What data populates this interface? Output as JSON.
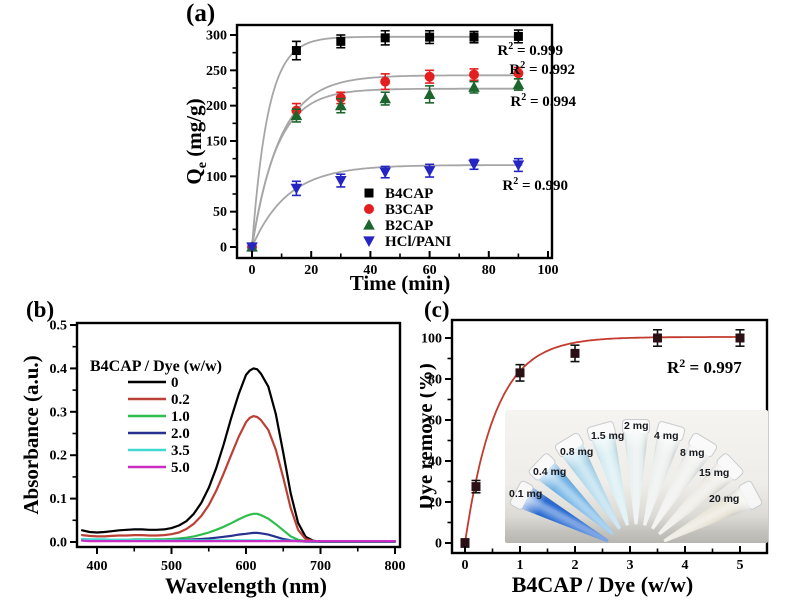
{
  "panels": {
    "a": {
      "label": "(a)"
    },
    "b": {
      "label": "(b)"
    },
    "c": {
      "label": "(c)"
    }
  },
  "chart_data": [
    {
      "id": "a",
      "type": "scatter",
      "xlabel": "Time (min)",
      "ylabel": [
        {
          "t": "Q"
        },
        {
          "t": "e",
          "sub": true
        },
        {
          "t": " (mg/g)"
        }
      ],
      "xticks": [
        "0",
        "20",
        "40",
        "60",
        "80",
        "100"
      ],
      "yticks": [
        "0",
        "50",
        "100",
        "150",
        "200",
        "250",
        "300"
      ],
      "xlim": [
        -5,
        101
      ],
      "ylim": [
        -16,
        314
      ],
      "grid": false,
      "legend_position": "lower-center-right",
      "series": [
        {
          "name": "B4CAP",
          "marker": "square",
          "color": "#000000",
          "fit_color": "#a6a6a6",
          "x": [
            0,
            15,
            30,
            45,
            60,
            75,
            90
          ],
          "y": [
            0,
            278,
            291,
            296,
            297,
            297,
            298
          ],
          "err": [
            0,
            13,
            9,
            10,
            9,
            8,
            9
          ],
          "fit": {
            "a": 297.5,
            "k": 0.185
          },
          "r2": {
            "prefix": "R",
            "sup": "2",
            "rest": " = 0.999",
            "color": "#000000"
          }
        },
        {
          "name": "B3CAP",
          "marker": "circle",
          "color": "#e31e1e",
          "fit_color": "#a6a6a6",
          "x": [
            0,
            15,
            30,
            45,
            60,
            75,
            90
          ],
          "y": [
            0,
            193,
            211,
            234,
            241,
            244,
            246
          ],
          "err": [
            0,
            10,
            8,
            11,
            9,
            8,
            8
          ],
          "fit": {
            "a": 243,
            "k": 0.105
          },
          "r2": {
            "prefix": "R",
            "sup": "2",
            "rest": " = 0.992",
            "color": "#e31e1e"
          }
        },
        {
          "name": "B2CAP",
          "marker": "triangle-up",
          "color": "#1c662e",
          "fit_color": "#a6a6a6",
          "x": [
            0,
            15,
            30,
            45,
            60,
            75,
            90
          ],
          "y": [
            0,
            186,
            200,
            210,
            216,
            226,
            230
          ],
          "err": [
            0,
            9,
            10,
            9,
            12,
            8,
            8
          ],
          "fit": {
            "a": 224,
            "k": 0.118
          },
          "r2": {
            "prefix": "R",
            "sup": "2",
            "rest": " = 0.994",
            "color": "#1c662e"
          }
        },
        {
          "name": "HCl/PANI",
          "marker": "triangle-down",
          "color": "#2525c4",
          "fit_color": "#a6a6a6",
          "x": [
            0,
            15,
            30,
            45,
            60,
            75,
            90
          ],
          "y": [
            0,
            83,
            94,
            106,
            108,
            117,
            116
          ],
          "err": [
            0,
            10,
            9,
            8,
            9,
            7,
            9
          ],
          "fit": {
            "a": 116,
            "k": 0.083
          },
          "r2": {
            "prefix": "R",
            "sup": "2",
            "rest": " = 0.990",
            "color": "#2525c4"
          }
        }
      ]
    },
    {
      "id": "b",
      "type": "line",
      "xlabel": "Wavelength (nm)",
      "ylabel": [
        {
          "t": "Absorbance (a.u.)"
        }
      ],
      "legend_title": "B4CAP / Dye (w/w)",
      "xticks": [
        "400",
        "500",
        "600",
        "700",
        "800"
      ],
      "yticks": [
        "0.0",
        "0.1",
        "0.2",
        "0.3",
        "0.4",
        "0.5"
      ],
      "xlim": [
        373,
        807
      ],
      "ylim": [
        -0.012,
        0.505
      ],
      "grid": false,
      "x": [
        380,
        390,
        400,
        410,
        420,
        430,
        440,
        450,
        460,
        470,
        480,
        490,
        500,
        510,
        520,
        530,
        540,
        550,
        560,
        570,
        580,
        590,
        600,
        605,
        610,
        615,
        620,
        630,
        640,
        650,
        660,
        670,
        680,
        690,
        700,
        720,
        740,
        760,
        780,
        800
      ],
      "series": [
        {
          "name": "0",
          "color": "#000000",
          "y": [
            0.027,
            0.023,
            0.022,
            0.023,
            0.025,
            0.027,
            0.028,
            0.029,
            0.029,
            0.028,
            0.028,
            0.029,
            0.032,
            0.038,
            0.048,
            0.065,
            0.09,
            0.125,
            0.17,
            0.225,
            0.285,
            0.34,
            0.385,
            0.395,
            0.4,
            0.398,
            0.388,
            0.358,
            0.295,
            0.205,
            0.112,
            0.044,
            0.012,
            0.003,
            0.001,
            0.001,
            0.001,
            0.001,
            0.001,
            0.001
          ]
        },
        {
          "name": "0.2",
          "color": "#bb4036",
          "y": [
            0.016,
            0.014,
            0.013,
            0.013,
            0.014,
            0.015,
            0.015,
            0.016,
            0.016,
            0.015,
            0.015,
            0.016,
            0.018,
            0.022,
            0.03,
            0.042,
            0.06,
            0.085,
            0.118,
            0.158,
            0.2,
            0.242,
            0.276,
            0.286,
            0.29,
            0.288,
            0.281,
            0.258,
            0.213,
            0.148,
            0.078,
            0.028,
            0.007,
            0.002,
            0.001,
            0.001,
            0.001,
            0.001,
            0.001,
            0.001
          ]
        },
        {
          "name": "1.0",
          "color": "#2fbe4e",
          "y": [
            0.006,
            0.005,
            0.005,
            0.005,
            0.005,
            0.005,
            0.005,
            0.006,
            0.006,
            0.006,
            0.006,
            0.006,
            0.007,
            0.008,
            0.01,
            0.013,
            0.017,
            0.022,
            0.028,
            0.035,
            0.043,
            0.052,
            0.06,
            0.063,
            0.065,
            0.065,
            0.062,
            0.054,
            0.041,
            0.027,
            0.013,
            0.005,
            0.002,
            0.001,
            0.001,
            0.001,
            0.001,
            0.001,
            0.001,
            0.001
          ]
        },
        {
          "name": "2.0",
          "color": "#283090",
          "y": [
            0.004,
            0.004,
            0.003,
            0.003,
            0.003,
            0.003,
            0.003,
            0.004,
            0.004,
            0.004,
            0.004,
            0.004,
            0.004,
            0.005,
            0.005,
            0.006,
            0.007,
            0.008,
            0.01,
            0.012,
            0.014,
            0.017,
            0.019,
            0.02,
            0.021,
            0.021,
            0.02,
            0.017,
            0.012,
            0.007,
            0.004,
            0.002,
            0.001,
            0.001,
            0.001,
            0.001,
            0.001,
            0.001,
            0.001,
            0.001
          ]
        },
        {
          "name": "3.5",
          "color": "#3fd9d2",
          "y": [
            0.007,
            0.006,
            0.006,
            0.006,
            0.005,
            0.005,
            0.005,
            0.005,
            0.005,
            0.005,
            0.004,
            0.004,
            0.004,
            0.004,
            0.004,
            0.004,
            0.004,
            0.004,
            0.004,
            0.004,
            0.004,
            0.004,
            0.004,
            0.004,
            0.004,
            0.004,
            0.004,
            0.003,
            0.003,
            0.003,
            0.003,
            0.002,
            0.002,
            0.002,
            0.002,
            0.002,
            0.002,
            0.002,
            0.002,
            0.002
          ]
        },
        {
          "name": "5.0",
          "color": "#cb2ec4",
          "y": [
            0.003,
            0.002,
            0.002,
            0.002,
            0.002,
            0.002,
            0.002,
            0.002,
            0.002,
            0.002,
            0.002,
            0.002,
            0.002,
            0.002,
            0.002,
            0.002,
            0.002,
            0.002,
            0.002,
            0.002,
            0.002,
            0.002,
            0.002,
            0.002,
            0.002,
            0.002,
            0.002,
            0.002,
            0.002,
            0.002,
            0.002,
            0.002,
            0.002,
            0.002,
            0.002,
            0.002,
            0.002,
            0.002,
            0.002,
            0.002
          ]
        }
      ]
    },
    {
      "id": "c",
      "type": "scatter",
      "xlabel": "B4CAP / Dye (w/w)",
      "ylabel": [
        {
          "t": "Dye remove (%)"
        }
      ],
      "xticks": [
        "0",
        "1",
        "2",
        "3",
        "4",
        "5"
      ],
      "yticks": [
        "0",
        "20",
        "40",
        "60",
        "80",
        "100"
      ],
      "xlim": [
        -0.25,
        5.5
      ],
      "ylim": [
        -5,
        109
      ],
      "grid": false,
      "series": [
        {
          "name": "dye-removal",
          "marker": "square",
          "color": "#2b1016",
          "fit_color": "#c23b2e",
          "err_color": "#111111",
          "x": [
            0,
            0.2,
            1,
            2,
            3.5,
            5
          ],
          "y": [
            0,
            27.5,
            83,
            92.5,
            100,
            100
          ],
          "err": [
            2,
            3,
            4,
            4,
            4,
            4
          ],
          "fit": {
            "a": 100.5,
            "k": 1.8
          },
          "r2": {
            "prefix": "R",
            "sup": "2",
            "rest": " = 0.997",
            "color": "#000000"
          }
        }
      ],
      "inset": {
        "tubes": [
          {
            "label": "0.1 mg",
            "color": "#2a6cd2"
          },
          {
            "label": "0.4 mg",
            "color": "#74b5e6"
          },
          {
            "label": "0.8 mg",
            "color": "#b0d9ec"
          },
          {
            "label": "1.5 mg",
            "color": "#d3ecf0"
          },
          {
            "label": "2 mg",
            "color": "#e6eeee"
          },
          {
            "label": "4 mg",
            "color": "#ebeeed"
          },
          {
            "label": "8 mg",
            "color": "#edeeec"
          },
          {
            "label": "15 mg",
            "color": "#ece9e2"
          },
          {
            "label": "20 mg",
            "color": "#e7e3d7"
          }
        ]
      }
    }
  ]
}
